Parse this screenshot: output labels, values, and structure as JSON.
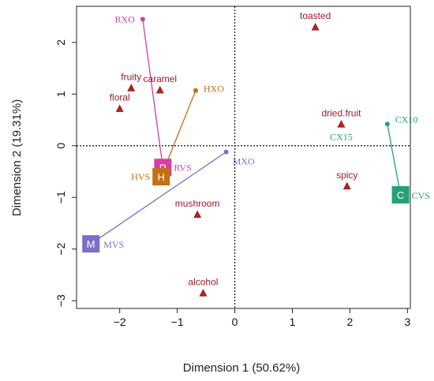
{
  "chart_data": {
    "type": "scatter",
    "xlabel": "Dimension 1 (50.62%)",
    "ylabel": "Dimension 2 (19.31%)",
    "xlim": [
      -2.75,
      3.05
    ],
    "ylim": [
      -3.15,
      2.7
    ],
    "xticks": [
      -2,
      -1,
      0,
      1,
      2,
      3
    ],
    "yticks": [
      -3,
      -2,
      -1,
      0,
      1,
      2
    ],
    "reference_lines": {
      "x": 0,
      "y": 0,
      "style": "dotted"
    },
    "attributes": [
      {
        "label": "toasted",
        "x": 1.4,
        "y": 2.3
      },
      {
        "label": "fruity",
        "x": -1.8,
        "y": 1.12
      },
      {
        "label": "caramel",
        "x": -1.3,
        "y": 1.08
      },
      {
        "label": "floral",
        "x": -2.0,
        "y": 0.72
      },
      {
        "label": "dried.fruit",
        "x": 1.85,
        "y": 0.42
      },
      {
        "label": "spicy",
        "x": 1.95,
        "y": -0.78
      },
      {
        "label": "mushroom",
        "x": -0.65,
        "y": -1.33
      },
      {
        "label": "alcohol",
        "x": -0.55,
        "y": -2.85
      }
    ],
    "groups": [
      {
        "letter": "R",
        "label": "RVS",
        "color": "#d63fa5",
        "x": -1.25,
        "y": -0.42,
        "points": [
          {
            "label": "RXO",
            "x": -1.6,
            "y": 2.45
          }
        ]
      },
      {
        "letter": "H",
        "label": "HVS",
        "color": "#c46f12",
        "x": -1.28,
        "y": -0.6,
        "points": [
          {
            "label": "HXO",
            "x": -0.68,
            "y": 1.07
          }
        ]
      },
      {
        "letter": "M",
        "label": "MVS",
        "color": "#7a6fc9",
        "x": -2.5,
        "y": -1.9,
        "points": [
          {
            "label": "MXO",
            "x": -0.15,
            "y": -0.12
          }
        ]
      },
      {
        "letter": "C",
        "label": "CVS",
        "color": "#25a078",
        "x": 2.88,
        "y": -0.95,
        "points": [
          {
            "label": "CX10",
            "x": 2.65,
            "y": 0.42
          },
          {
            "label": "CX15",
            "x": 2.65,
            "y": 0.42
          }
        ]
      }
    ]
  }
}
